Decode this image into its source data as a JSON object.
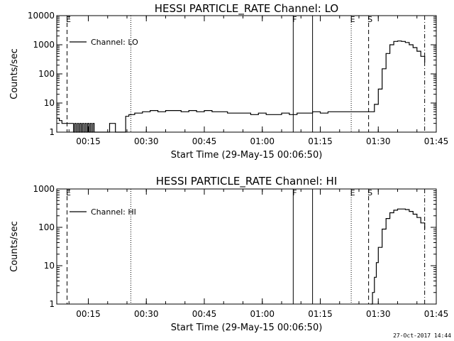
{
  "chart_data": [
    {
      "type": "line",
      "title": "HESSI PARTICLE_RATE Channel: LO",
      "xlabel": "Start Time (29-May-15 00:06:50)",
      "ylabel": "Counts/sec",
      "y_scale": "log",
      "ylim": [
        1,
        10000
      ],
      "xlim": [
        "00:06:50",
        "01:45:00"
      ],
      "x_ticks": [
        "00:15",
        "00:30",
        "00:45",
        "01:00",
        "01:15",
        "01:30",
        "01:45"
      ],
      "y_ticks": [
        "1",
        "10",
        "100",
        "1000",
        "10000"
      ],
      "legend": {
        "label": "Channel: LO",
        "placement": "top-left"
      },
      "grid": false,
      "series": [
        {
          "name": "Channel: LO",
          "x": [
            "00:06:50",
            "00:07:30",
            "00:08:10",
            "00:08:50",
            "00:09:30",
            "00:10:10",
            "00:10:50",
            "00:11:10",
            "00:11:30",
            "00:11:50",
            "00:12:10",
            "00:12:30",
            "00:12:50",
            "00:13:10",
            "00:13:30",
            "00:13:50",
            "00:14:10",
            "00:14:30",
            "00:14:50",
            "00:15:10",
            "00:15:30",
            "00:15:50",
            "00:16:10",
            "00:16:30",
            "00:17:00",
            "00:18:00",
            "00:19:00",
            "00:20:00",
            "00:20:30",
            "00:21:00",
            "00:21:30",
            "00:22:00",
            "00:22:30",
            "00:23:00",
            "00:24:00",
            "00:24:40",
            "00:25:30",
            "00:27:00",
            "00:29:00",
            "00:31:00",
            "00:33:00",
            "00:35:00",
            "00:37:00",
            "00:39:00",
            "00:41:00",
            "00:43:00",
            "00:45:00",
            "00:47:00",
            "00:49:00",
            "00:51:00",
            "00:53:00",
            "00:55:00",
            "00:57:00",
            "00:59:00",
            "01:01:00",
            "01:03:00",
            "01:05:00",
            "01:07:00",
            "01:09:00",
            "01:11:00",
            "01:13:00",
            "01:15:00",
            "01:17:00",
            "01:19:00",
            "01:21:00",
            "01:23:00",
            "01:25:00",
            "01:27:00",
            "01:28:00",
            "01:29:00",
            "01:30:00",
            "01:31:00",
            "01:32:00",
            "01:33:00",
            "01:34:00",
            "01:35:00",
            "01:36:00",
            "01:37:00",
            "01:38:00",
            "01:39:00",
            "01:40:00",
            "01:41:00",
            "01:42:00"
          ],
          "y": [
            3,
            2.5,
            2,
            2,
            2,
            2,
            2,
            1,
            2,
            1,
            2,
            1,
            2,
            1,
            2,
            1,
            2,
            1,
            2,
            1,
            2,
            1,
            2,
            1,
            1,
            1,
            1,
            1,
            2,
            2,
            2,
            1,
            1,
            1,
            1,
            3.5,
            4,
            4.5,
            5,
            5.5,
            5,
            5.5,
            5.5,
            5,
            5.5,
            5,
            5.5,
            5,
            5,
            4.5,
            4.5,
            4.5,
            4,
            4.5,
            4,
            4,
            4.5,
            4,
            4.5,
            4.5,
            5,
            4.5,
            5,
            5,
            5,
            5,
            5,
            5,
            5,
            9,
            30,
            150,
            500,
            1000,
            1300,
            1350,
            1300,
            1200,
            1000,
            800,
            600,
            400,
            250
          ]
        }
      ],
      "markers": [
        {
          "label": "E",
          "x": "00:09:30",
          "style": "dashed"
        },
        {
          "label": "",
          "x": "00:26:00",
          "style": "dotted"
        },
        {
          "label": "F",
          "x": "01:08:00",
          "style": "solid"
        },
        {
          "label": "",
          "x": "01:13:00",
          "style": "solid"
        },
        {
          "label": "E",
          "x": "01:23:00",
          "style": "dotted"
        },
        {
          "label": "S",
          "x": "01:27:30",
          "style": "dashed"
        },
        {
          "label": "",
          "x": "01:42:00",
          "style": "dashdot"
        }
      ]
    },
    {
      "type": "line",
      "title": "HESSI PARTICLE_RATE Channel: HI",
      "xlabel": "Start Time (29-May-15 00:06:50)",
      "ylabel": "Counts/sec",
      "y_scale": "log",
      "ylim": [
        1,
        1000
      ],
      "xlim": [
        "00:06:50",
        "01:45:00"
      ],
      "x_ticks": [
        "00:15",
        "00:30",
        "00:45",
        "01:00",
        "01:15",
        "01:30",
        "01:45"
      ],
      "y_ticks": [
        "1",
        "10",
        "100",
        "1000"
      ],
      "legend": {
        "label": "Channel: HI",
        "placement": "top-left"
      },
      "grid": false,
      "series": [
        {
          "name": "Channel: HI",
          "x": [
            "01:28:00",
            "01:28:30",
            "01:29:00",
            "01:29:30",
            "01:30:00",
            "01:31:00",
            "01:32:00",
            "01:33:00",
            "01:34:00",
            "01:35:00",
            "01:36:00",
            "01:37:00",
            "01:38:00",
            "01:39:00",
            "01:40:00",
            "01:41:00",
            "01:42:00"
          ],
          "y": [
            1,
            2,
            5,
            12,
            30,
            90,
            170,
            240,
            280,
            300,
            300,
            290,
            260,
            220,
            180,
            130,
            90
          ]
        }
      ],
      "markers": [
        {
          "label": "E",
          "x": "00:09:30",
          "style": "dashed"
        },
        {
          "label": "",
          "x": "00:26:00",
          "style": "dotted"
        },
        {
          "label": "F",
          "x": "01:08:00",
          "style": "solid"
        },
        {
          "label": "",
          "x": "01:13:00",
          "style": "solid"
        },
        {
          "label": "E",
          "x": "01:23:00",
          "style": "dotted"
        },
        {
          "label": "S",
          "x": "01:27:30",
          "style": "dashed"
        },
        {
          "label": "",
          "x": "01:42:00",
          "style": "dashdot"
        }
      ]
    }
  ],
  "footer": {
    "timestamp": "27-Oct-2017 14:44"
  }
}
